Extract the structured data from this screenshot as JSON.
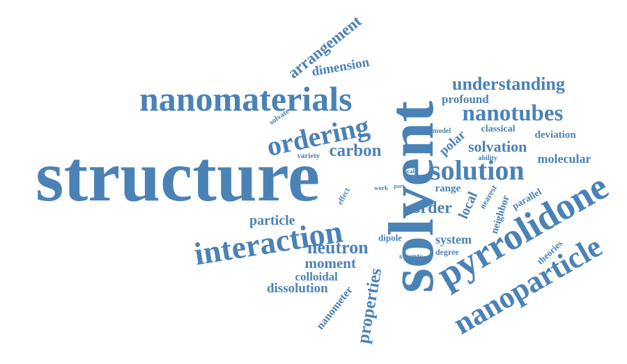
{
  "word_cloud": {
    "color": "#4a82b6",
    "background": "#ffffff",
    "words": [
      "structure",
      "solvent",
      "pyrrolidone",
      "nanomaterials",
      "nanoparticle",
      "interaction",
      "ordering",
      "solution",
      "nanotubes",
      "understanding",
      "neutron",
      "carbon",
      "order",
      "properties",
      "arrangement",
      "local",
      "solvation",
      "moment",
      "particle",
      "dimension",
      "molecular",
      "dissolution",
      "nanometer",
      "polar",
      "colloidal",
      "system",
      "profound",
      "classical",
      "deviation",
      "range",
      "neighbor",
      "theories",
      "parallel",
      "swcnts",
      "nearest",
      "dipole",
      "degree",
      "effect",
      "variety",
      "solvate",
      "model",
      "ability",
      "scale",
      "work",
      "part"
    ]
  }
}
